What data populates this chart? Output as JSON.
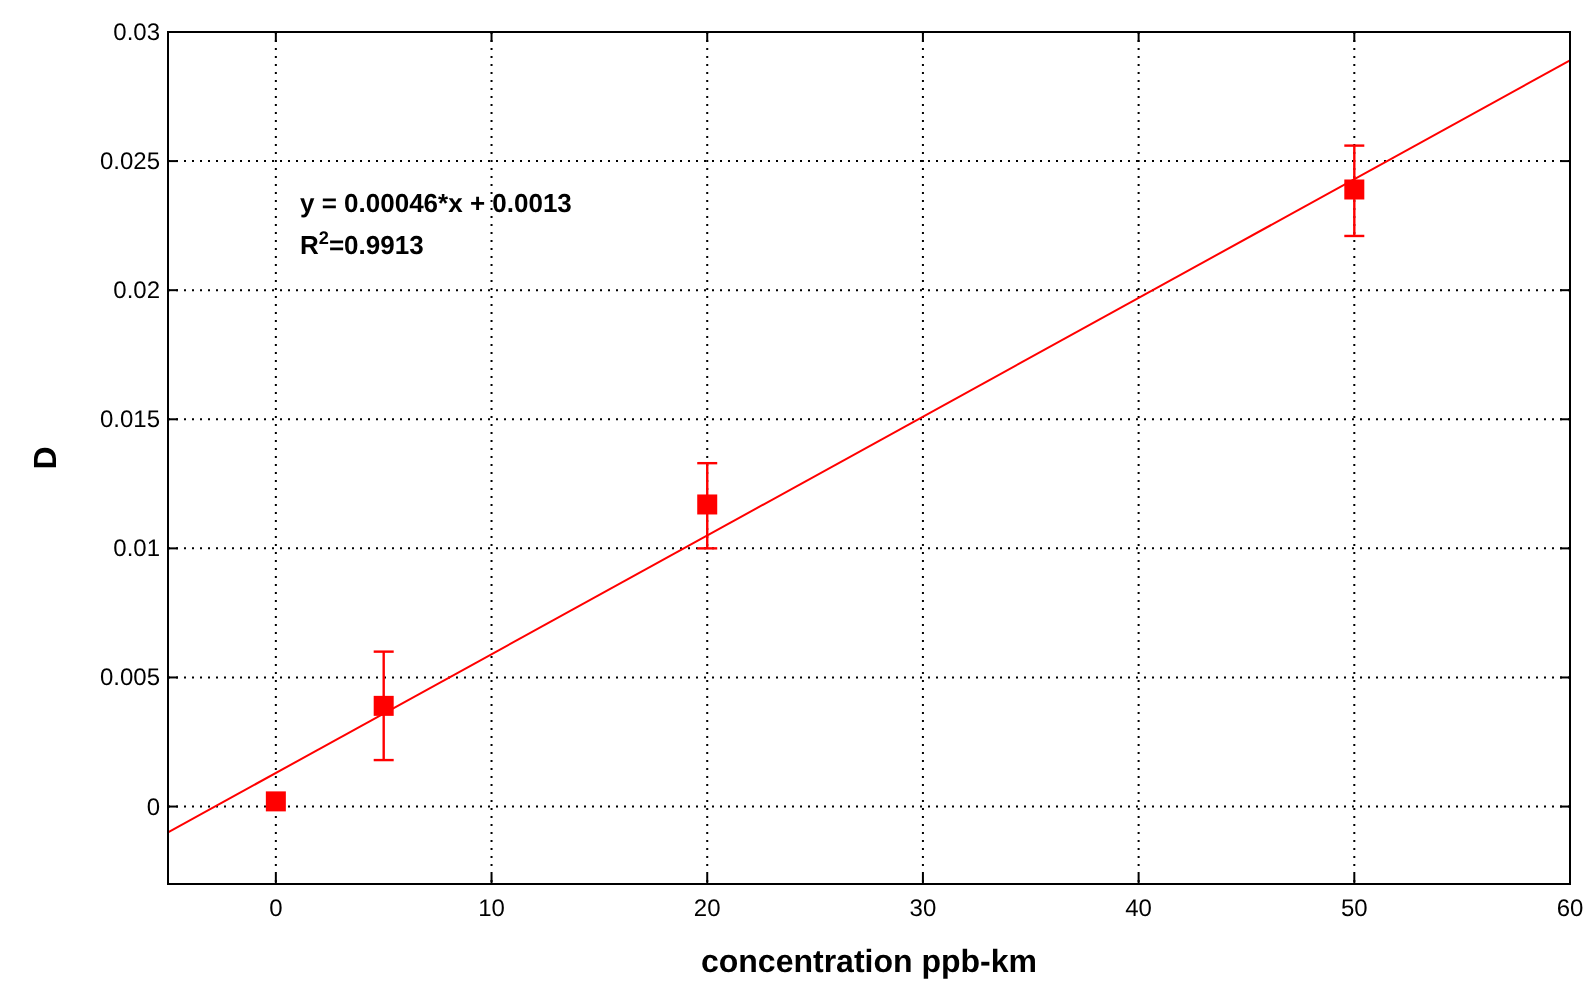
{
  "chart_data": {
    "type": "scatter",
    "xlabel": "concentration ppb-km",
    "ylabel": "D",
    "xlim": [
      -5,
      60
    ],
    "xticks": [
      0,
      10,
      20,
      30,
      40,
      50,
      60
    ],
    "ylim": [
      -0.003,
      0.03
    ],
    "yticks": [
      0,
      0.005,
      0.01,
      0.015,
      0.02,
      0.025,
      0.03
    ],
    "grid": true,
    "marker": "square",
    "annotations": [
      "y = 0.00046*x + 0.0013",
      "R$^{2}$=0.9913"
    ],
    "series": [
      {
        "color": "#ff0000",
        "x": [
          0,
          5,
          20,
          50
        ],
        "values": [
          0.0002,
          0.0039,
          0.0117,
          0.0239
        ],
        "errors": [
          null,
          [
            0.0018,
            0.006
          ],
          [
            0.01,
            0.0133
          ],
          [
            0.0221,
            0.0256
          ]
        ]
      },
      {
        "type": "line",
        "color": "#ff0000",
        "x": [
          -5,
          60
        ],
        "values": [
          -0.001,
          0.0289
        ],
        "marker": "none"
      }
    ]
  }
}
